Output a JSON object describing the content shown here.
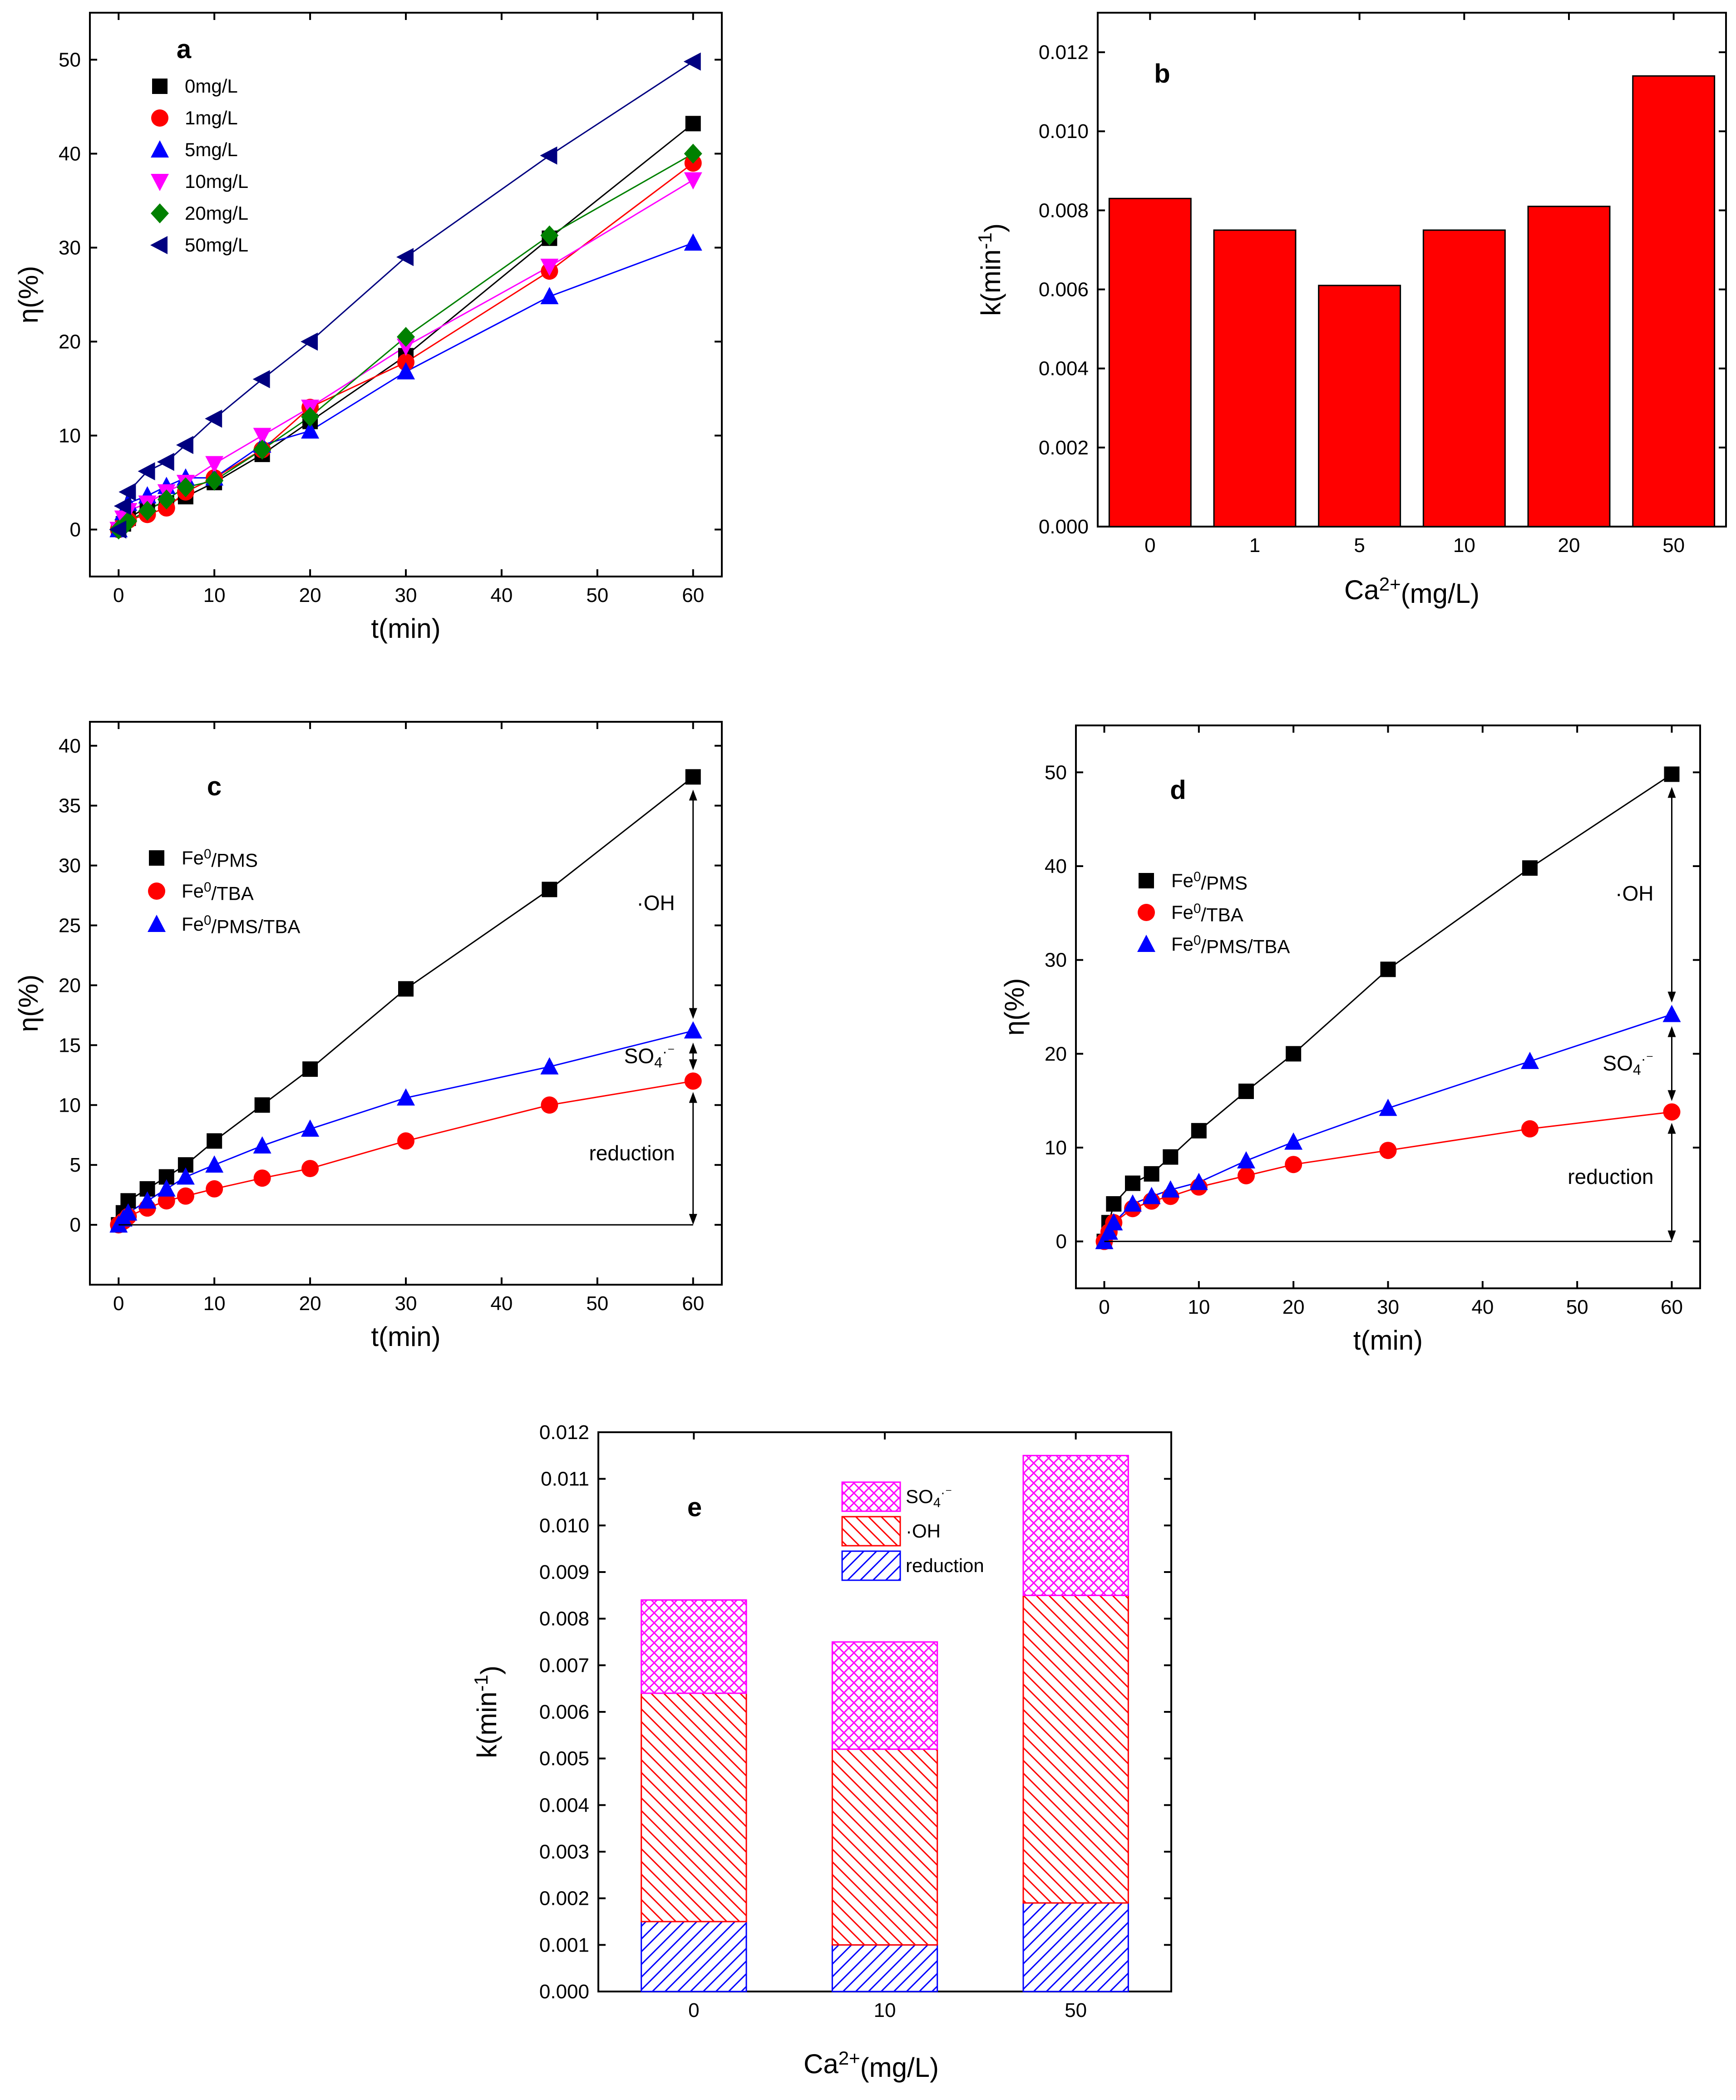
{
  "chart_data": [
    {
      "id": "a",
      "type": "scatter",
      "panel_label": "a",
      "xlabel": "t(min)",
      "ylabel": "η(%)",
      "xlim": [
        -3,
        63
      ],
      "ylim": [
        -5,
        55
      ],
      "xticks": [
        0,
        10,
        20,
        30,
        40,
        50,
        60
      ],
      "yticks": [
        0,
        10,
        20,
        30,
        40,
        50
      ],
      "legend_position": "top-left",
      "x": [
        0,
        0.5,
        1,
        3,
        5,
        7,
        10,
        15,
        20,
        30,
        45,
        60
      ],
      "series": [
        {
          "name": "0mg/L",
          "marker": "square",
          "color": "#000000",
          "values": [
            0,
            0.6,
            1.2,
            2.4,
            2.8,
            3.5,
            5.0,
            8.0,
            11.5,
            18.5,
            31.0,
            43.2
          ]
        },
        {
          "name": "1mg/L",
          "marker": "circle",
          "color": "#ff0000",
          "values": [
            0,
            0.7,
            1.0,
            1.6,
            2.3,
            4.0,
            5.5,
            8.5,
            13.0,
            17.8,
            27.5,
            39.0
          ]
        },
        {
          "name": "5mg/L",
          "marker": "triangle-up",
          "color": "#0000ff",
          "values": [
            0,
            1.8,
            2.8,
            3.6,
            4.6,
            5.5,
            5.5,
            9.0,
            10.5,
            16.8,
            24.8,
            30.5
          ]
        },
        {
          "name": "10mg/L",
          "marker": "triangle-down",
          "color": "#ff00ff",
          "values": [
            0,
            1.2,
            2.0,
            2.8,
            4.0,
            5.0,
            7.0,
            10.0,
            13.0,
            19.5,
            28.0,
            37.2
          ]
        },
        {
          "name": "20mg/L",
          "marker": "diamond",
          "color": "#008000",
          "values": [
            0,
            0.3,
            0.9,
            2.0,
            3.2,
            4.5,
            5.2,
            8.5,
            12.0,
            20.5,
            31.3,
            40.0
          ]
        },
        {
          "name": "50mg/L",
          "marker": "triangle-left",
          "color": "#000080",
          "values": [
            0,
            2.5,
            4.0,
            6.2,
            7.2,
            9.0,
            11.8,
            16.0,
            20.0,
            29.0,
            39.8,
            49.8
          ]
        }
      ]
    },
    {
      "id": "b",
      "type": "bar",
      "panel_label": "b",
      "xlabel": "Ca²⁺(mg/L)",
      "ylabel": "k(min⁻¹)",
      "categories": [
        "0",
        "1",
        "5",
        "10",
        "20",
        "50"
      ],
      "values": [
        0.0083,
        0.0075,
        0.0061,
        0.0075,
        0.0081,
        0.0114
      ],
      "ylim": [
        0,
        0.013
      ],
      "yticks": [
        "0.000",
        "0.002",
        "0.004",
        "0.006",
        "0.008",
        "0.010",
        "0.012"
      ],
      "color": "#ff0000"
    },
    {
      "id": "c",
      "type": "scatter",
      "panel_label": "c",
      "xlabel": "t(min)",
      "ylabel": "η(%)",
      "xlim": [
        -3,
        63
      ],
      "ylim": [
        -5,
        42
      ],
      "xticks": [
        0,
        10,
        20,
        30,
        40,
        50,
        60
      ],
      "yticks": [
        0,
        5,
        10,
        15,
        20,
        25,
        30,
        35,
        40
      ],
      "legend_position": "top-left",
      "x": [
        0,
        0.5,
        1,
        3,
        5,
        7,
        10,
        15,
        20,
        30,
        45,
        60
      ],
      "series": [
        {
          "name": "Fe0/PMS",
          "marker": "square",
          "color": "#000000",
          "values": [
            0,
            1.0,
            2.0,
            3.0,
            4.0,
            5.0,
            7.0,
            10.0,
            13.0,
            19.7,
            28.0,
            37.4
          ]
        },
        {
          "name": "Fe0/TBA",
          "marker": "circle",
          "color": "#ff0000",
          "values": [
            0,
            0.3,
            0.7,
            1.4,
            2.0,
            2.4,
            3.0,
            3.9,
            4.7,
            7.0,
            10.0,
            12.0
          ]
        },
        {
          "name": "Fe0/PMS/TBA",
          "marker": "triangle-up",
          "color": "#0000ff",
          "values": [
            0,
            0.5,
            1.0,
            2.0,
            3.0,
            4.0,
            5.0,
            6.6,
            8.0,
            10.6,
            13.2,
            16.2
          ]
        }
      ],
      "annotations": [
        "·OH",
        "SO4·⁻",
        "reduction"
      ]
    },
    {
      "id": "d",
      "type": "scatter",
      "panel_label": "d",
      "xlabel": "t(min)",
      "ylabel": "η(%)",
      "xlim": [
        -3,
        63
      ],
      "ylim": [
        -5,
        55
      ],
      "xticks": [
        0,
        10,
        20,
        30,
        40,
        50,
        60
      ],
      "yticks": [
        0,
        10,
        20,
        30,
        40,
        50
      ],
      "legend_position": "top-left",
      "x": [
        0,
        0.5,
        1,
        3,
        5,
        7,
        10,
        15,
        20,
        30,
        45,
        60
      ],
      "series": [
        {
          "name": "Fe0/PMS",
          "marker": "square",
          "color": "#000000",
          "values": [
            0,
            2.0,
            4.0,
            6.2,
            7.2,
            9.0,
            11.8,
            16.0,
            20.0,
            29.0,
            39.8,
            49.8
          ]
        },
        {
          "name": "Fe0/TBA",
          "marker": "circle",
          "color": "#ff0000",
          "values": [
            0,
            1.0,
            2.0,
            3.5,
            4.3,
            4.8,
            5.8,
            7.0,
            8.2,
            9.7,
            12.0,
            13.8
          ]
        },
        {
          "name": "Fe0/PMS/TBA",
          "marker": "triangle-up",
          "color": "#0000ff",
          "values": [
            0,
            1.0,
            2.0,
            4.0,
            4.8,
            5.5,
            6.3,
            8.6,
            10.6,
            14.2,
            19.2,
            24.2
          ]
        }
      ],
      "annotations": [
        "·OH",
        "SO4·⁻",
        "reduction"
      ]
    },
    {
      "id": "e",
      "type": "bar",
      "stacked": true,
      "panel_label": "e",
      "xlabel": "Ca²⁺(mg/L)",
      "ylabel": "k(min⁻¹)",
      "categories": [
        "0",
        "10",
        "50"
      ],
      "ylim": [
        0,
        0.012
      ],
      "yticks": [
        "0.000",
        "0.001",
        "0.002",
        "0.003",
        "0.004",
        "0.005",
        "0.006",
        "0.007",
        "0.008",
        "0.009",
        "0.010",
        "0.011",
        "0.012"
      ],
      "legend_position": "top-center",
      "series": [
        {
          "name": "reduction",
          "color": "#0000ff",
          "pattern": "hatch-forward",
          "values": [
            0.0015,
            0.001,
            0.0019
          ]
        },
        {
          "name": "·OH",
          "color": "#ff0000",
          "pattern": "hatch-back",
          "values": [
            0.0049,
            0.0042,
            0.0066
          ]
        },
        {
          "name": "SO4·⁻",
          "color": "#ff00ff",
          "pattern": "crosshatch",
          "values": [
            0.002,
            0.0023,
            0.003
          ]
        }
      ]
    }
  ]
}
